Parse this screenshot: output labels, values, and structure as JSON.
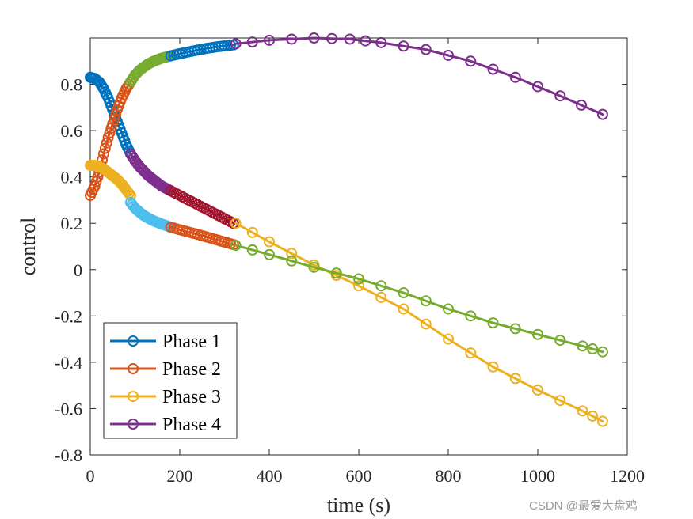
{
  "chart_data": {
    "type": "line",
    "title": "",
    "xlabel": "time (s)",
    "ylabel": "control",
    "xlim": [
      0,
      1200
    ],
    "ylim": [
      -0.8,
      1.0
    ],
    "xticks": [
      0,
      200,
      400,
      600,
      800,
      1000,
      1200
    ],
    "yticks": [
      -0.8,
      -0.6,
      -0.4,
      -0.2,
      0,
      0.2,
      0.4,
      0.6,
      0.8
    ],
    "xtick_labels": [
      "0",
      "200",
      "400",
      "600",
      "800",
      "1000",
      "1200"
    ],
    "ytick_labels": [
      "-0.8",
      "-0.6",
      "-0.4",
      "-0.2",
      "0",
      "0.2",
      "0.4",
      "0.6",
      "0.8"
    ],
    "grid": false,
    "legend_position": "bottom-left",
    "colors": {
      "Phase 1": "#0072BD",
      "Phase 2": "#D95319",
      "Phase 3": "#EDB120",
      "Phase 4": "#7E2F8E",
      "segment_green": "#77AC30",
      "segment_lightblue": "#4DBEEE",
      "segment_darkred": "#A2142F"
    },
    "series": [
      {
        "name": "Phase 1",
        "color": "#0072BD",
        "x": [
          0,
          10,
          20,
          30,
          40,
          50,
          60,
          70,
          80,
          90
        ],
        "y": [
          0.83,
          0.825,
          0.81,
          0.78,
          0.74,
          0.69,
          0.64,
          0.59,
          0.54,
          0.5
        ]
      },
      {
        "name": "Phase 1",
        "color": "#D95319",
        "x": [
          0,
          10,
          20,
          30,
          40,
          50,
          60,
          70,
          80,
          90
        ],
        "y": [
          0.32,
          0.36,
          0.42,
          0.5,
          0.57,
          0.63,
          0.69,
          0.74,
          0.78,
          0.81
        ]
      },
      {
        "name": "Phase 1",
        "color": "#EDB120",
        "x": [
          0,
          10,
          20,
          30,
          40,
          50,
          60,
          70,
          80,
          90
        ],
        "y": [
          0.45,
          0.45,
          0.445,
          0.435,
          0.42,
          0.405,
          0.39,
          0.37,
          0.345,
          0.32
        ]
      },
      {
        "name": "Phase 2",
        "color": "#7E2F8E",
        "x": [
          90,
          100,
          110,
          120,
          130,
          140,
          150,
          160,
          170,
          180
        ],
        "y": [
          0.5,
          0.47,
          0.445,
          0.425,
          0.405,
          0.39,
          0.375,
          0.36,
          0.35,
          0.34
        ]
      },
      {
        "name": "Phase 2",
        "color": "#77AC30",
        "x": [
          90,
          100,
          110,
          120,
          130,
          140,
          150,
          160,
          170,
          180
        ],
        "y": [
          0.81,
          0.84,
          0.86,
          0.875,
          0.888,
          0.898,
          0.906,
          0.913,
          0.918,
          0.923
        ]
      },
      {
        "name": "Phase 2",
        "color": "#4DBEEE",
        "x": [
          90,
          100,
          110,
          120,
          130,
          140,
          150,
          160,
          170,
          180
        ],
        "y": [
          0.29,
          0.265,
          0.248,
          0.233,
          0.222,
          0.212,
          0.204,
          0.196,
          0.19,
          0.183
        ]
      },
      {
        "name": "Phase 3",
        "color": "#A2142F",
        "x": [
          180,
          200,
          220,
          240,
          260,
          280,
          300,
          320
        ],
        "y": [
          0.34,
          0.32,
          0.3,
          0.28,
          0.26,
          0.24,
          0.22,
          0.2
        ]
      },
      {
        "name": "Phase 3",
        "color": "#0072BD",
        "x": [
          180,
          200,
          220,
          240,
          260,
          280,
          300,
          320
        ],
        "y": [
          0.923,
          0.932,
          0.94,
          0.948,
          0.955,
          0.961,
          0.966,
          0.97
        ]
      },
      {
        "name": "Phase 3",
        "color": "#D95319",
        "x": [
          180,
          200,
          220,
          240,
          260,
          280,
          300,
          320
        ],
        "y": [
          0.183,
          0.172,
          0.162,
          0.152,
          0.141,
          0.13,
          0.119,
          0.108
        ]
      },
      {
        "name": "Phase 4",
        "color": "#7E2F8E",
        "x": [
          325,
          400,
          500,
          580,
          650,
          750,
          850,
          950,
          1050,
          1145
        ],
        "y": [
          0.975,
          0.99,
          1.0,
          0.995,
          0.98,
          0.95,
          0.9,
          0.83,
          0.75,
          0.67
        ]
      },
      {
        "name": "Phase 4",
        "color": "#EDB120",
        "x": [
          325,
          400,
          500,
          600,
          700,
          800,
          900,
          1000,
          1100,
          1145
        ],
        "y": [
          0.2,
          0.12,
          0.02,
          -0.07,
          -0.17,
          -0.3,
          -0.42,
          -0.52,
          -0.61,
          -0.655
        ]
      },
      {
        "name": "Phase 4",
        "color": "#77AC30",
        "x": [
          325,
          400,
          500,
          600,
          700,
          800,
          900,
          1000,
          1100,
          1145
        ],
        "y": [
          0.105,
          0.065,
          0.01,
          -0.04,
          -0.1,
          -0.17,
          -0.23,
          -0.28,
          -0.33,
          -0.355
        ]
      }
    ],
    "legend": [
      {
        "label": "Phase 1",
        "color": "#0072BD"
      },
      {
        "label": "Phase 2",
        "color": "#D95319"
      },
      {
        "label": "Phase 3",
        "color": "#EDB120"
      },
      {
        "label": "Phase 4",
        "color": "#7E2F8E"
      }
    ]
  },
  "watermark": "CSDN @最爱大盘鸡"
}
